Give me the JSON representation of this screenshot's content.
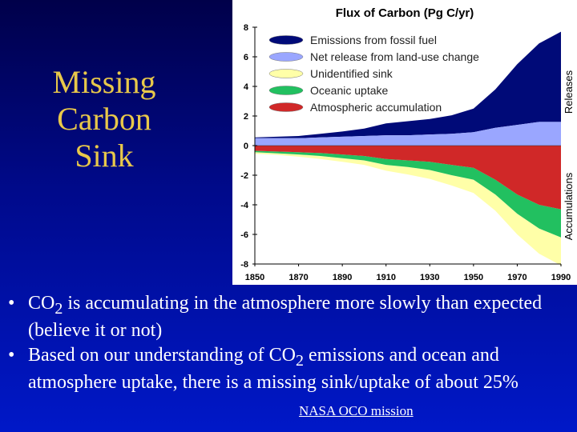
{
  "slide": {
    "title": "Missing\nCarbon\nSink",
    "credit": "NASA OCO mission"
  },
  "bullets": [
    {
      "pre": "CO",
      "sub": "2",
      "post": " is accumulating in the atmosphere more slowly than expected (believe it or not)"
    },
    {
      "pre": "Based on our understanding of CO",
      "sub": "2",
      "post": " emissions and ocean and atmosphere uptake, there is a missing sink/uptake of about 25%"
    }
  ],
  "colors": {
    "fossil": "#000a78",
    "landuse": "#9aa6ff",
    "unidentified": "#ffffa8",
    "ocean": "#22c060",
    "atmosphere": "#d02828",
    "bg_top": "#00004a",
    "bg_bottom": "#0018c8",
    "title": "#e8c84a"
  },
  "chart_data": {
    "type": "area",
    "title": "Flux of Carbon (Pg C/yr)",
    "xlabel": "",
    "ylabel": "",
    "right_labels": {
      "releases": "Releases",
      "accumulations": "Accumulations"
    },
    "xlim": [
      1850,
      1990
    ],
    "ylim": [
      -8,
      8
    ],
    "x_ticks": [
      1850,
      1870,
      1890,
      1910,
      1930,
      1950,
      1970,
      1990
    ],
    "y_ticks": [
      8,
      6,
      4,
      2,
      0,
      -2,
      -4,
      -6,
      -8
    ],
    "legend_position": "top-right",
    "x": [
      1850,
      1860,
      1870,
      1880,
      1890,
      1900,
      1910,
      1920,
      1930,
      1940,
      1950,
      1960,
      1970,
      1980,
      1990
    ],
    "series": [
      {
        "name": "Emissions from fossil fuel",
        "values": [
          0.05,
          0.1,
          0.15,
          0.25,
          0.35,
          0.5,
          0.8,
          0.95,
          1.05,
          1.25,
          1.6,
          2.6,
          4.1,
          5.3,
          6.1
        ]
      },
      {
        "name": "Net release from land-use change",
        "values": [
          0.5,
          0.5,
          0.5,
          0.55,
          0.6,
          0.65,
          0.7,
          0.7,
          0.75,
          0.8,
          0.9,
          1.2,
          1.4,
          1.6,
          1.6
        ]
      },
      {
        "name": "Unidentified sink",
        "values": [
          -0.1,
          -0.1,
          -0.15,
          -0.2,
          -0.25,
          -0.3,
          -0.4,
          -0.5,
          -0.6,
          -0.7,
          -0.9,
          -1.1,
          -1.4,
          -1.7,
          -1.9
        ]
      },
      {
        "name": "Oceanic uptake",
        "values": [
          -0.1,
          -0.12,
          -0.15,
          -0.2,
          -0.25,
          -0.3,
          -0.4,
          -0.45,
          -0.55,
          -0.7,
          -0.8,
          -1.0,
          -1.3,
          -1.6,
          -1.9
        ]
      },
      {
        "name": "Atmospheric accumulation",
        "values": [
          -0.35,
          -0.4,
          -0.45,
          -0.5,
          -0.6,
          -0.7,
          -0.9,
          -1.0,
          -1.1,
          -1.3,
          -1.5,
          -2.3,
          -3.3,
          -4.0,
          -4.3
        ]
      }
    ]
  }
}
